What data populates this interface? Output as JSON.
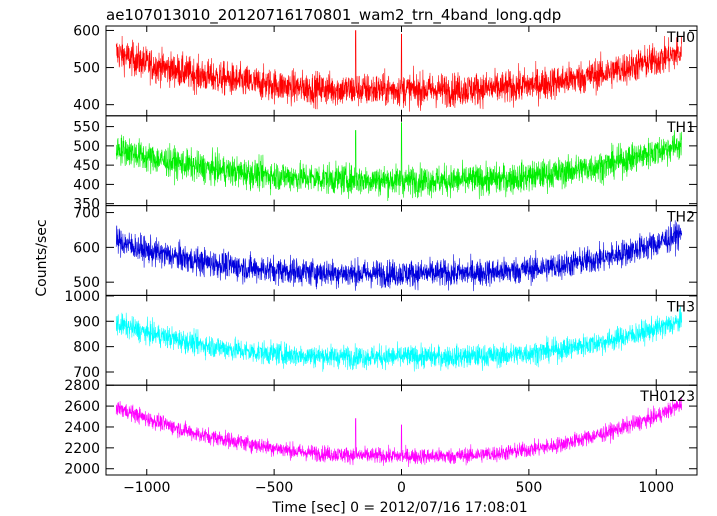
{
  "chart_data": {
    "type": "line",
    "title": "ae107013010_20120716170801_wam2_trn_4band_long.qdp",
    "xlabel": "Time [sec] 0 = 2012/07/16 17:08:01",
    "ylabel": "Counts/sec",
    "xlim": [
      -1160,
      1160
    ],
    "xticks": [
      -1000,
      -500,
      0,
      500,
      1000
    ],
    "xtick_labels": [
      "−1000",
      "−500",
      "0",
      "500",
      "1000"
    ],
    "panels": [
      {
        "name": "TH0",
        "color": "#ff0000",
        "ylim": [
          370,
          612
        ],
        "yticks": [
          400,
          500,
          600
        ],
        "baseline": {
          "x": [
            -1120,
            -1000,
            -800,
            -600,
            -400,
            -200,
            0,
            200,
            400,
            600,
            800,
            1000,
            1100
          ],
          "y": [
            540,
            510,
            480,
            460,
            445,
            440,
            440,
            440,
            445,
            460,
            485,
            520,
            540
          ]
        },
        "noise": 32,
        "spikes": [
          {
            "x": -180,
            "y": 600
          },
          {
            "x": 0,
            "y": 590
          }
        ]
      },
      {
        "name": "TH1",
        "color": "#00ee00",
        "ylim": [
          345,
          578
        ],
        "yticks": [
          350,
          400,
          450,
          500,
          550
        ],
        "baseline": {
          "x": [
            -1120,
            -1000,
            -800,
            -600,
            -400,
            -200,
            0,
            200,
            400,
            600,
            800,
            1000,
            1100
          ],
          "y": [
            495,
            470,
            445,
            428,
            418,
            412,
            410,
            410,
            414,
            428,
            450,
            485,
            505
          ]
        },
        "noise": 28,
        "spikes": [
          {
            "x": -180,
            "y": 540
          },
          {
            "x": 0,
            "y": 560
          }
        ]
      },
      {
        "name": "TH2",
        "color": "#0000dd",
        "ylim": [
          462,
          720
        ],
        "yticks": [
          500,
          600,
          700
        ],
        "baseline": {
          "x": [
            -1120,
            -1000,
            -800,
            -600,
            -400,
            -200,
            0,
            200,
            400,
            600,
            800,
            1000,
            1100
          ],
          "y": [
            620,
            590,
            560,
            540,
            530,
            525,
            525,
            525,
            530,
            545,
            570,
            610,
            640
          ]
        },
        "noise": 28,
        "spikes": []
      },
      {
        "name": "TH3",
        "color": "#00ffff",
        "ylim": [
          648,
          1002
        ],
        "yticks": [
          700,
          800,
          900,
          1000
        ],
        "baseline": {
          "x": [
            -1120,
            -1000,
            -800,
            -600,
            -400,
            -200,
            0,
            200,
            400,
            600,
            800,
            1000,
            1100
          ],
          "y": [
            890,
            855,
            810,
            780,
            765,
            760,
            760,
            760,
            765,
            785,
            820,
            870,
            900
          ]
        },
        "noise": 32,
        "spikes": []
      },
      {
        "name": "TH0123",
        "color": "#ff00ff",
        "ylim": [
          1940,
          2800
        ],
        "yticks": [
          2000,
          2200,
          2400,
          2600,
          2800
        ],
        "baseline": {
          "x": [
            -1120,
            -1000,
            -800,
            -600,
            -400,
            -200,
            0,
            200,
            400,
            600,
            800,
            1000,
            1100
          ],
          "y": [
            2590,
            2480,
            2330,
            2240,
            2160,
            2130,
            2120,
            2120,
            2150,
            2220,
            2340,
            2500,
            2620
          ]
        },
        "noise": 55,
        "spikes": [
          {
            "x": -180,
            "y": 2480
          },
          {
            "x": 0,
            "y": 2420
          }
        ]
      }
    ],
    "grid": false,
    "legend": "none"
  }
}
